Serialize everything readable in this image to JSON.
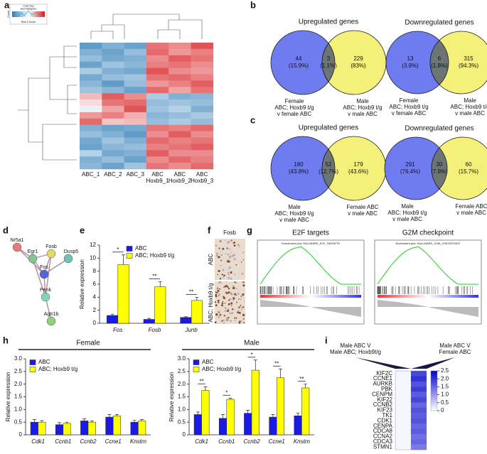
{
  "panel_a": {
    "letter": "a",
    "color_key": [
      "Color Key",
      "and Histogram"
    ],
    "z_label": "Row Z-Score",
    "count_label": "Count",
    "columns": [
      [
        "ABC_1"
      ],
      [
        "ABC_2"
      ],
      [
        "ABC_3"
      ],
      [
        "ABC",
        "Hoxb9_1"
      ],
      [
        "ABC",
        "Hoxb9_2"
      ],
      [
        "ABC",
        "Hoxb9_3"
      ]
    ],
    "heatmap": [
      [
        -1.5,
        -1.2,
        -1.4,
        1.2,
        1.0,
        1.5
      ],
      [
        -1.2,
        -1.4,
        -1.0,
        1.3,
        0.9,
        1.1
      ],
      [
        -1.0,
        -1.3,
        -1.2,
        1.0,
        1.4,
        1.2
      ],
      [
        -1.4,
        -0.9,
        -1.1,
        1.1,
        1.2,
        1.0
      ],
      [
        -0.8,
        -1.2,
        -1.3,
        1.5,
        1.0,
        0.9
      ],
      [
        -1.3,
        -1.0,
        -0.9,
        1.2,
        1.3,
        1.1
      ],
      [
        -1.1,
        -1.5,
        -1.0,
        0.9,
        1.1,
        1.4
      ],
      [
        -0.9,
        -1.1,
        -1.4,
        1.3,
        0.8,
        1.2
      ],
      [
        0.6,
        1.4,
        1.0,
        -0.8,
        -1.2,
        -1.1
      ],
      [
        0.3,
        1.2,
        1.3,
        -1.0,
        -0.9,
        -1.0
      ],
      [
        -0.2,
        0.8,
        1.5,
        -0.9,
        -0.7,
        -1.2
      ],
      [
        0.9,
        1.1,
        0.7,
        -1.1,
        -1.0,
        -0.8
      ],
      [
        1.3,
        0.5,
        0.6,
        -1.0,
        -0.8,
        -1.0
      ],
      [
        -1.2,
        -1.4,
        -1.3,
        1.2,
        1.1,
        1.3
      ],
      [
        -1.0,
        -1.2,
        -1.5,
        1.0,
        1.4,
        1.0
      ],
      [
        -1.3,
        -0.9,
        -1.2,
        1.3,
        1.1,
        1.2
      ],
      [
        -1.4,
        -1.1,
        -1.0,
        1.1,
        1.2,
        1.4
      ],
      [
        -0.7,
        -1.3,
        -1.2,
        1.4,
        1.0,
        1.0
      ],
      [
        -1.2,
        -1.0,
        -1.4,
        1.0,
        1.3,
        1.1
      ],
      [
        -1.1,
        -1.4,
        -0.9,
        1.2,
        1.0,
        1.3
      ]
    ]
  },
  "panel_b": {
    "letter": "b",
    "venns": [
      {
        "title": "Upregulated genes",
        "left": 44,
        "left_pct": "(15.9%)",
        "mid": 3,
        "mid_pct": "(1.1%)",
        "right": 229,
        "right_pct": "(83%)",
        "left_label": [
          "Female",
          "ABC; Hoxb9 t/g",
          "v female ABC"
        ],
        "right_label": [
          "Male",
          "ABC; Hoxb9 t/g",
          "v male ABC"
        ]
      },
      {
        "title": "Downregulated genes",
        "left": 13,
        "left_pct": "(3.9%)",
        "mid": 6,
        "mid_pct": "(1.8%)",
        "right": 315,
        "right_pct": "(94.3%)",
        "left_label": [
          "Female",
          "ABC; Hoxb9 t/g",
          "v female ABC"
        ],
        "right_label": [
          "Male",
          "ABC; Hoxb9 t/g",
          "v male ABC"
        ]
      }
    ]
  },
  "panel_c": {
    "letter": "c",
    "venns": [
      {
        "title": "Upregulated genes",
        "left": 180,
        "left_pct": "(43.8%)",
        "mid": 52,
        "mid_pct": "(12.7%)",
        "right": 179,
        "right_pct": "(43.6%)",
        "left_label": [
          "Male",
          "ABC; Hoxb9 t/g",
          "v male ABC"
        ],
        "right_label": [
          "Female ABC",
          "v male ABC"
        ]
      },
      {
        "title": "Downregulated genes",
        "left": 291,
        "left_pct": "(76.4%)",
        "mid": 30,
        "mid_pct": "(7.9%)",
        "right": 60,
        "right_pct": "(15.7%)",
        "left_label": [
          "Male",
          "ABC; Hoxb9 t/g",
          "v male ABC"
        ],
        "right_label": [
          "Female ABC",
          "v male ABC"
        ]
      }
    ]
  },
  "panel_d": {
    "letter": "d",
    "nodes": [
      "Nr5a1",
      "Egr1",
      "Fosb",
      "Dusp5",
      "Fos",
      "Penk",
      "Agtr1b"
    ]
  },
  "panel_e": {
    "letter": "e"
  },
  "panel_f": {
    "letter": "f",
    "title": "Fosb",
    "rows": [
      "ABC",
      "ABC; Hoxb9 t/g"
    ]
  },
  "panel_g": {
    "letter": "g",
    "plots": [
      {
        "title": "E2F targets",
        "inner": "Enrichment plot: HALLMARK_E2F_TARGETS"
      },
      {
        "title": "G2M checkpoint",
        "inner": "Enrichment plot: HALLMARK_G2M_CHECKPOINT"
      }
    ]
  },
  "panel_h": {
    "letter": "h"
  },
  "panel_i": {
    "letter": "i",
    "headers": [
      [
        "Male ABC V",
        "Male ABC; Hoxb9t/g"
      ],
      [
        "Male ABC V",
        "Female ABC"
      ]
    ],
    "genes": [
      "KIF2C",
      "CCNE1",
      "AURKB",
      "PBK",
      "CENPM",
      "KIF22",
      "CCNB2",
      "KIF23",
      "TK1",
      "CDK1",
      "CENPA",
      "CDCA8",
      "CCNA2",
      "CDCA3",
      "STMN1"
    ],
    "values": [
      [
        0.1,
        1.8
      ],
      [
        0.1,
        2.0
      ],
      [
        0.1,
        1.7
      ],
      [
        0.1,
        1.9
      ],
      [
        0.1,
        1.6
      ],
      [
        0.1,
        1.8
      ],
      [
        0.1,
        1.5
      ],
      [
        0.1,
        1.7
      ],
      [
        0.1,
        1.6
      ],
      [
        0.1,
        1.7
      ],
      [
        0.1,
        1.5
      ],
      [
        0.1,
        1.6
      ],
      [
        0.1,
        1.4
      ],
      [
        0.1,
        1.5
      ],
      [
        0.1,
        1.3
      ]
    ],
    "scale_lim": [
      0,
      2.5
    ],
    "scale_ticks": [
      2.5,
      {
        "value": 2,
        "label": "2.0"
      },
      1.5,
      {
        "value": 1,
        "label": "1.0"
      },
      0.5,
      0
    ]
  },
  "chart_data": [
    {
      "type": "bar",
      "ylabel": "Relative expression",
      "categories": [
        "Fos",
        "Fosb",
        "Junb"
      ],
      "series": [
        {
          "name": "ABC",
          "color": "#1a1ae6",
          "values": [
            1.2,
            0.6,
            0.9
          ],
          "errors": [
            0.2,
            0.15,
            0.1
          ]
        },
        {
          "name": "ABC; Hoxb9 t/g",
          "color": "#ffff00",
          "values": [
            9.0,
            5.6,
            3.5
          ],
          "errors": [
            1.5,
            0.8,
            0.5
          ]
        }
      ],
      "significance": [
        "*",
        "**",
        "**"
      ],
      "ylim": [
        0,
        12
      ],
      "yticks": [
        0,
        2,
        4,
        6,
        8,
        10,
        12
      ]
    },
    {
      "type": "bar",
      "title": "Female",
      "ylabel": "Relative expression",
      "categories": [
        "Cdk1",
        "Ccnb1",
        "Ccnb2",
        "Ccne1",
        "Knstrn"
      ],
      "series": [
        {
          "name": "ABC",
          "color": "#1a1ae6",
          "values": [
            0.5,
            0.4,
            0.55,
            0.7,
            0.5
          ],
          "errors": [
            0.1,
            0.08,
            0.08,
            0.1,
            0.07
          ]
        },
        {
          "name": "ABC; Hoxb9 t/g",
          "color": "#ffff00",
          "values": [
            0.5,
            0.45,
            0.5,
            0.75,
            0.55
          ],
          "errors": [
            0.06,
            0.05,
            0.05,
            0.05,
            0.05
          ]
        }
      ],
      "ylim": [
        0,
        3
      ],
      "yticks": [
        0,
        0.5,
        {
          "value": 1,
          "label": "1.0"
        },
        1.5,
        {
          "value": 2,
          "label": "2.0"
        },
        2.5,
        {
          "value": 3,
          "label": "3.0"
        }
      ]
    },
    {
      "type": "bar",
      "title": "Male",
      "ylabel": "Relative expression",
      "categories": [
        "Cdk1",
        "Ccnb1",
        "Ccnb2",
        "Ccne1",
        "Knstrn"
      ],
      "series": [
        {
          "name": "ABC",
          "color": "#1a1ae6",
          "values": [
            0.8,
            0.65,
            0.85,
            0.7,
            0.75
          ],
          "errors": [
            0.1,
            0.15,
            0.12,
            0.1,
            0.1
          ]
        },
        {
          "name": "ABC; Hoxb9 t/g",
          "color": "#ffff00",
          "values": [
            1.75,
            1.4,
            2.55,
            2.25,
            1.85
          ],
          "errors": [
            0.15,
            0.05,
            0.4,
            0.35,
            0.15
          ]
        }
      ],
      "significance": [
        "**",
        "*",
        "*",
        "**",
        "**"
      ],
      "ylim": [
        0,
        3
      ],
      "yticks": [
        0,
        0.5,
        {
          "value": 1,
          "label": "1.0"
        },
        1.5,
        {
          "value": 2,
          "label": "2.0"
        },
        2.5,
        {
          "value": 3,
          "label": "3.0"
        }
      ]
    }
  ]
}
